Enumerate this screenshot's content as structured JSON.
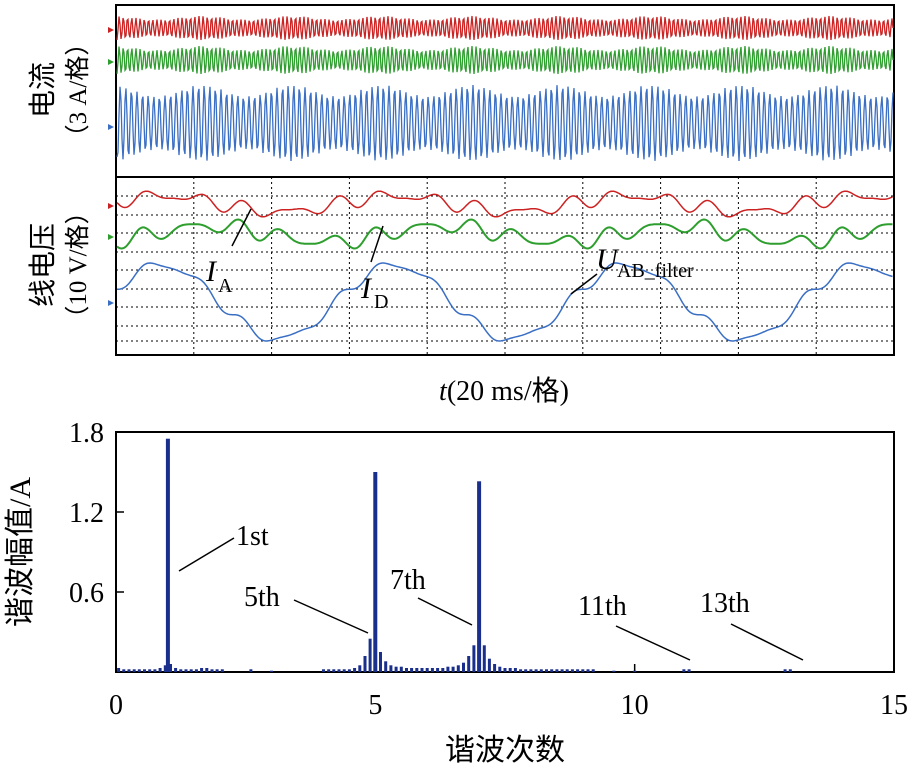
{
  "scope": {
    "current_panel": {
      "ylabel_main": "电流",
      "ylabel_unit": "（3 A/格）"
    },
    "voltage_panel": {
      "ylabel_main": "线电压",
      "ylabel_unit": "（10 V/格）"
    },
    "xlabel_italic": "t",
    "xlabel_rest": "(20 ms/格)",
    "annotations": {
      "ia_letter": "I",
      "ia_sub": "A",
      "id_letter": "I",
      "id_sub": "D",
      "uab_letter": "U",
      "uab_sub": "AB_filter"
    },
    "colors": {
      "red": "#cc2222",
      "green": "#2e9e2e",
      "blue": "#3a6fc4"
    }
  },
  "chart_data": {
    "type": "bar",
    "xlabel": "谐波次数",
    "ylabel": "谐波幅值/A",
    "xlim": [
      0,
      15
    ],
    "ylim": [
      0,
      1.8
    ],
    "xticks": [
      0,
      5,
      10,
      15
    ],
    "yticks": [
      0.6,
      1.2,
      1.8
    ],
    "bar_color": "#1a2e8c",
    "bars": [
      {
        "x": 0.05,
        "y": 0.03
      },
      {
        "x": 0.15,
        "y": 0.02
      },
      {
        "x": 0.25,
        "y": 0.02
      },
      {
        "x": 0.35,
        "y": 0.02
      },
      {
        "x": 0.45,
        "y": 0.02
      },
      {
        "x": 0.55,
        "y": 0.02
      },
      {
        "x": 0.65,
        "y": 0.02
      },
      {
        "x": 0.75,
        "y": 0.02
      },
      {
        "x": 0.85,
        "y": 0.03
      },
      {
        "x": 0.95,
        "y": 0.05
      },
      {
        "x": 1.0,
        "y": 1.75
      },
      {
        "x": 1.05,
        "y": 0.06
      },
      {
        "x": 1.15,
        "y": 0.03
      },
      {
        "x": 1.25,
        "y": 0.02
      },
      {
        "x": 1.35,
        "y": 0.02
      },
      {
        "x": 1.45,
        "y": 0.02
      },
      {
        "x": 1.55,
        "y": 0.02
      },
      {
        "x": 1.65,
        "y": 0.03
      },
      {
        "x": 1.75,
        "y": 0.03
      },
      {
        "x": 1.85,
        "y": 0.02
      },
      {
        "x": 1.95,
        "y": 0.02
      },
      {
        "x": 2.05,
        "y": 0.02
      },
      {
        "x": 2.6,
        "y": 0.02
      },
      {
        "x": 3.0,
        "y": 0.01
      },
      {
        "x": 4.0,
        "y": 0.02
      },
      {
        "x": 4.1,
        "y": 0.02
      },
      {
        "x": 4.2,
        "y": 0.02
      },
      {
        "x": 4.3,
        "y": 0.02
      },
      {
        "x": 4.4,
        "y": 0.02
      },
      {
        "x": 4.5,
        "y": 0.02
      },
      {
        "x": 4.6,
        "y": 0.03
      },
      {
        "x": 4.7,
        "y": 0.05
      },
      {
        "x": 4.8,
        "y": 0.12
      },
      {
        "x": 4.9,
        "y": 0.25
      },
      {
        "x": 5.0,
        "y": 1.5
      },
      {
        "x": 5.1,
        "y": 0.15
      },
      {
        "x": 5.2,
        "y": 0.08
      },
      {
        "x": 5.3,
        "y": 0.05
      },
      {
        "x": 5.4,
        "y": 0.04
      },
      {
        "x": 5.5,
        "y": 0.04
      },
      {
        "x": 5.6,
        "y": 0.03
      },
      {
        "x": 5.7,
        "y": 0.03
      },
      {
        "x": 5.8,
        "y": 0.03
      },
      {
        "x": 5.9,
        "y": 0.03
      },
      {
        "x": 6.0,
        "y": 0.03
      },
      {
        "x": 6.1,
        "y": 0.03
      },
      {
        "x": 6.2,
        "y": 0.03
      },
      {
        "x": 6.3,
        "y": 0.03
      },
      {
        "x": 6.4,
        "y": 0.04
      },
      {
        "x": 6.5,
        "y": 0.04
      },
      {
        "x": 6.6,
        "y": 0.05
      },
      {
        "x": 6.7,
        "y": 0.07
      },
      {
        "x": 6.8,
        "y": 0.12
      },
      {
        "x": 6.9,
        "y": 0.2
      },
      {
        "x": 7.0,
        "y": 1.43
      },
      {
        "x": 7.1,
        "y": 0.2
      },
      {
        "x": 7.2,
        "y": 0.1
      },
      {
        "x": 7.3,
        "y": 0.06
      },
      {
        "x": 7.4,
        "y": 0.04
      },
      {
        "x": 7.5,
        "y": 0.03
      },
      {
        "x": 7.6,
        "y": 0.03
      },
      {
        "x": 7.7,
        "y": 0.03
      },
      {
        "x": 7.8,
        "y": 0.02
      },
      {
        "x": 7.9,
        "y": 0.02
      },
      {
        "x": 8.0,
        "y": 0.02
      },
      {
        "x": 8.1,
        "y": 0.02
      },
      {
        "x": 8.2,
        "y": 0.02
      },
      {
        "x": 8.3,
        "y": 0.02
      },
      {
        "x": 8.4,
        "y": 0.02
      },
      {
        "x": 8.5,
        "y": 0.02
      },
      {
        "x": 8.6,
        "y": 0.02
      },
      {
        "x": 8.7,
        "y": 0.02
      },
      {
        "x": 8.8,
        "y": 0.02
      },
      {
        "x": 8.9,
        "y": 0.02
      },
      {
        "x": 9.0,
        "y": 0.02
      },
      {
        "x": 9.1,
        "y": 0.02
      },
      {
        "x": 9.2,
        "y": 0.02
      },
      {
        "x": 9.6,
        "y": 0.01
      },
      {
        "x": 10.0,
        "y": 0.01
      },
      {
        "x": 10.95,
        "y": 0.02
      },
      {
        "x": 11.05,
        "y": 0.02
      },
      {
        "x": 12.9,
        "y": 0.02
      },
      {
        "x": 13.0,
        "y": 0.02
      }
    ],
    "annotations": [
      {
        "label": "1st",
        "x": 1.0
      },
      {
        "label": "5th",
        "x": 5.0
      },
      {
        "label": "7th",
        "x": 7.0
      },
      {
        "label": "11th",
        "x": 11.0
      },
      {
        "label": "13th",
        "x": 13.0
      }
    ]
  }
}
